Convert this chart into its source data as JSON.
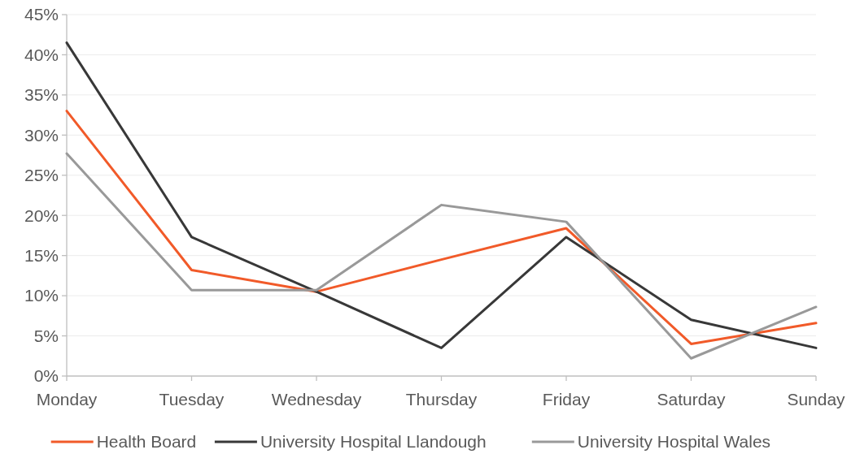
{
  "chart_data": {
    "type": "line",
    "categories": [
      "Monday",
      "Tuesday",
      "Wednesday",
      "Thursday",
      "Friday",
      "Saturday",
      "Sunday"
    ],
    "series": [
      {
        "name": "Health Board",
        "color": "#f15a29",
        "values": [
          33,
          13.2,
          10.5,
          14.5,
          18.4,
          4,
          6.6
        ]
      },
      {
        "name": "University Hospital Llandough",
        "color": "#383838",
        "values": [
          41.5,
          17.3,
          10.5,
          3.5,
          17.3,
          7,
          3.5
        ]
      },
      {
        "name": "University Hospital Wales",
        "color": "#999999",
        "values": [
          27.7,
          10.7,
          10.7,
          21.3,
          19.2,
          2.2,
          8.6
        ]
      }
    ],
    "ylim": [
      0,
      45
    ],
    "yticks": [
      {
        "value": 0,
        "label": "0%"
      },
      {
        "value": 5,
        "label": "5%"
      },
      {
        "value": 10,
        "label": "10%"
      },
      {
        "value": 15,
        "label": "15%"
      },
      {
        "value": 20,
        "label": "20%"
      },
      {
        "value": 25,
        "label": "25%"
      },
      {
        "value": 30,
        "label": "30%"
      },
      {
        "value": 35,
        "label": "35%"
      },
      {
        "value": 40,
        "label": "40%"
      },
      {
        "value": 45,
        "label": "45%"
      }
    ],
    "grid": "y",
    "legend": "bottom",
    "marker": "none",
    "line_style": "solid"
  }
}
